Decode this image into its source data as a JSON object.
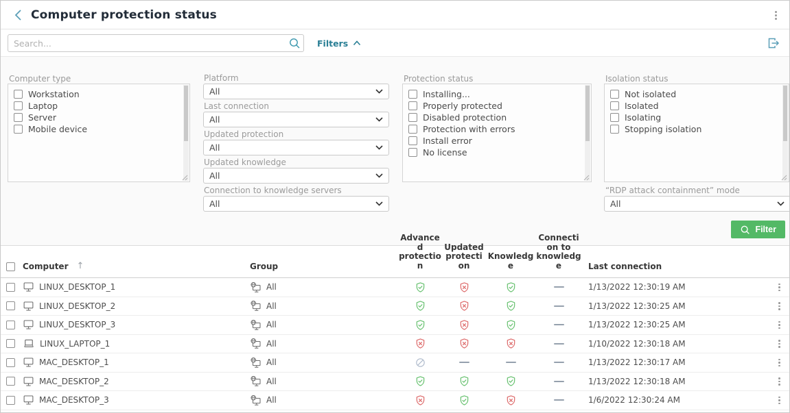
{
  "colors": {
    "teal_dark": "#2a7f95",
    "icon_blue": "#5b9fb8",
    "btn_green": "#53b966",
    "shield_green": "#67c16f",
    "shield_red": "#dd6a6a",
    "disabled_gray": "#aebacb",
    "device_gray": "#6b6b6b"
  },
  "header": {
    "title": "Computer protection status"
  },
  "toolbar": {
    "search_placeholder": "Search...",
    "filters_label": "Filters"
  },
  "filters": {
    "computer_type": {
      "label": "Computer type",
      "options": [
        "Workstation",
        "Laptop",
        "Server",
        "Mobile device"
      ]
    },
    "platform": {
      "label": "Platform",
      "value": "All"
    },
    "last_connection": {
      "label": "Last connection",
      "value": "All"
    },
    "updated_protection": {
      "label": "Updated protection",
      "value": "All"
    },
    "updated_knowledge": {
      "label": "Updated knowledge",
      "value": "All"
    },
    "connection_to_knowledge_servers": {
      "label": "Connection to knowledge servers",
      "value": "All"
    },
    "protection_status": {
      "label": "Protection status",
      "options": [
        "Installing...",
        "Properly protected",
        "Disabled protection",
        "Protection with errors",
        "Install error",
        "No license"
      ]
    },
    "isolation_status": {
      "label": "Isolation status",
      "options": [
        "Not isolated",
        "Isolated",
        "Isolating",
        "Stopping isolation"
      ]
    },
    "rdp_mode": {
      "label": "“RDP attack containment” mode",
      "value": "All"
    },
    "filter_button_label": "Filter"
  },
  "table": {
    "columns": {
      "computer": "Computer",
      "group": "Group",
      "advanced_protection": "Advanced protection",
      "updated_protection": "Updated protection",
      "knowledge": "Knowledge",
      "connection_to_knowledge": "Connection to knowledge",
      "last_connection": "Last connection"
    },
    "rows": [
      {
        "computer": "LINUX_DESKTOP_1",
        "device": "desktop",
        "group": "All",
        "advanced_protection": "ok",
        "updated_protection": "error",
        "knowledge": "ok",
        "connection_to_knowledge": "none",
        "last_connection": "1/13/2022 12:30:19 AM"
      },
      {
        "computer": "LINUX_DESKTOP_2",
        "device": "desktop",
        "group": "All",
        "advanced_protection": "ok",
        "updated_protection": "error",
        "knowledge": "ok",
        "connection_to_knowledge": "none",
        "last_connection": "1/13/2022 12:30:25 AM"
      },
      {
        "computer": "LINUX_DESKTOP_3",
        "device": "desktop",
        "group": "All",
        "advanced_protection": "ok",
        "updated_protection": "error",
        "knowledge": "ok",
        "connection_to_knowledge": "none",
        "last_connection": "1/13/2022 12:30:25 AM"
      },
      {
        "computer": "LINUX_LAPTOP_1",
        "device": "laptop",
        "group": "All",
        "advanced_protection": "error",
        "updated_protection": "error",
        "knowledge": "error",
        "connection_to_knowledge": "none",
        "last_connection": "1/10/2022 12:30:18 AM"
      },
      {
        "computer": "MAC_DESKTOP_1",
        "device": "desktop",
        "group": "All",
        "advanced_protection": "disabled",
        "updated_protection": "none",
        "knowledge": "none",
        "connection_to_knowledge": "none",
        "last_connection": "1/13/2022 12:30:17 AM"
      },
      {
        "computer": "MAC_DESKTOP_2",
        "device": "desktop",
        "group": "All",
        "advanced_protection": "ok",
        "updated_protection": "ok",
        "knowledge": "ok",
        "connection_to_knowledge": "none",
        "last_connection": "1/13/2022 12:30:18 AM"
      },
      {
        "computer": "MAC_DESKTOP_3",
        "device": "desktop",
        "group": "All",
        "advanced_protection": "error",
        "updated_protection": "ok",
        "knowledge": "error",
        "connection_to_knowledge": "none",
        "last_connection": "1/6/2022 12:30:24 AM"
      }
    ]
  }
}
